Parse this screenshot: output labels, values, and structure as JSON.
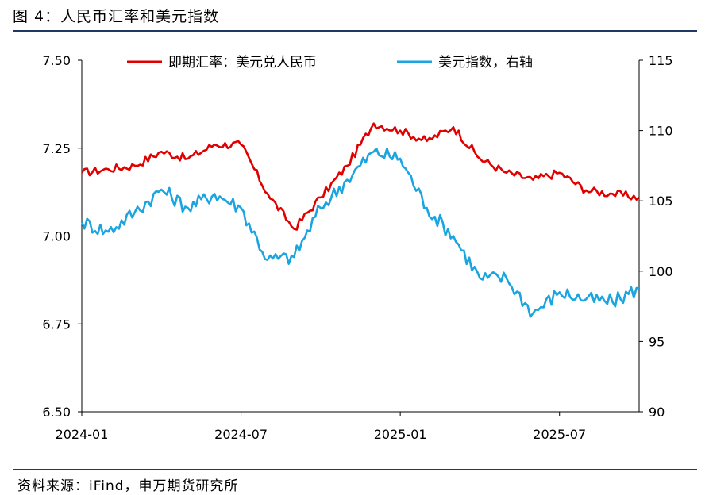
{
  "header": {
    "title": "图 4：人民币汇率和美元指数"
  },
  "footer": {
    "source": "资料来源：iFind，申万期货研究所"
  },
  "chart_data": {
    "type": "line",
    "title": "人民币汇率和美元指数",
    "x_ticks": [
      "2024-01",
      "2024-07",
      "2025-01",
      "2025-07"
    ],
    "x_range": [
      "2024-01",
      "2025-10"
    ],
    "y_left": {
      "ticks": [
        "7.50",
        "7.25",
        "7.00",
        "6.75",
        "6.50"
      ],
      "range": [
        6.5,
        7.5
      ]
    },
    "y_right": {
      "ticks": [
        "115",
        "110",
        "105",
        "100",
        "95",
        "90"
      ],
      "range": [
        90,
        115
      ]
    },
    "grid": false,
    "legend": "top",
    "series": [
      {
        "name": "即期汇率：美元兑人民币",
        "axis": "left",
        "color": "#e00000",
        "x": [
          "2024-01",
          "2024-02",
          "2024-03",
          "2024-04",
          "2024-05",
          "2024-06",
          "2024-07",
          "2024-08",
          "2024-09",
          "2024-10",
          "2024-11",
          "2024-12",
          "2025-01",
          "2025-02",
          "2025-03",
          "2025-04",
          "2025-05",
          "2025-06",
          "2025-07",
          "2025-08",
          "2025-09",
          "2025-10"
        ],
        "values": [
          7.18,
          7.19,
          7.2,
          7.24,
          7.22,
          7.26,
          7.26,
          7.12,
          7.02,
          7.11,
          7.2,
          7.32,
          7.3,
          7.27,
          7.31,
          7.22,
          7.18,
          7.16,
          7.18,
          7.13,
          7.12,
          7.11
        ]
      },
      {
        "name": "美元指数，右轴",
        "axis": "right",
        "color": "#1aa5e0",
        "x": [
          "2024-01",
          "2024-02",
          "2024-03",
          "2024-04",
          "2024-05",
          "2024-06",
          "2024-07",
          "2024-08",
          "2024-09",
          "2024-10",
          "2024-11",
          "2024-12",
          "2025-01",
          "2025-02",
          "2025-03",
          "2025-04",
          "2025-05",
          "2025-06",
          "2025-07",
          "2025-08",
          "2025-09",
          "2025-10"
        ],
        "values": [
          103.5,
          102.8,
          104.2,
          105.8,
          104.5,
          105.5,
          104.5,
          100.8,
          101.0,
          104.5,
          106.5,
          108.5,
          108.0,
          104.5,
          102.5,
          99.5,
          99.5,
          97.0,
          98.5,
          98.0,
          97.8,
          98.8
        ]
      }
    ]
  }
}
